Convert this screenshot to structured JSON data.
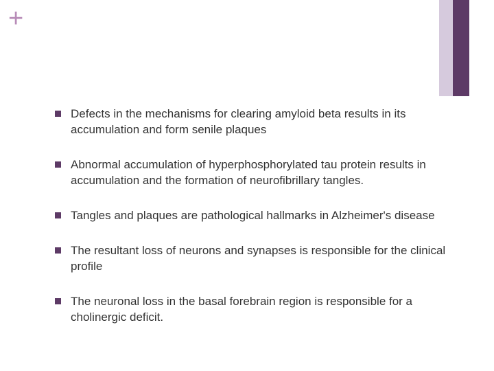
{
  "decoration": {
    "plus_symbol": "+",
    "plus_color": "#b88cb8",
    "bars": [
      {
        "width": 20,
        "color": "#d6cadd"
      },
      {
        "width": 24,
        "color": "#5d3a66"
      }
    ]
  },
  "bullets": {
    "marker_color": "#5d3a66",
    "text_color": "#333333",
    "font_size": 17,
    "items": [
      {
        "text": "Defects in the mechanisms for clearing amyloid beta results in its accumulation and form senile plaques"
      },
      {
        "text": "Abnormal accumulation of hyperphosphorylated tau protein results in accumulation and the formation of neurofibrillary tangles."
      },
      {
        "text": "Tangles and plaques are pathological hallmarks in Alzheimer's disease"
      },
      {
        "text": "The resultant loss of neurons and synapses is responsible for the clinical profile"
      },
      {
        "text": "The neuronal loss in the basal forebrain region is responsible for a cholinergic deficit."
      }
    ]
  }
}
